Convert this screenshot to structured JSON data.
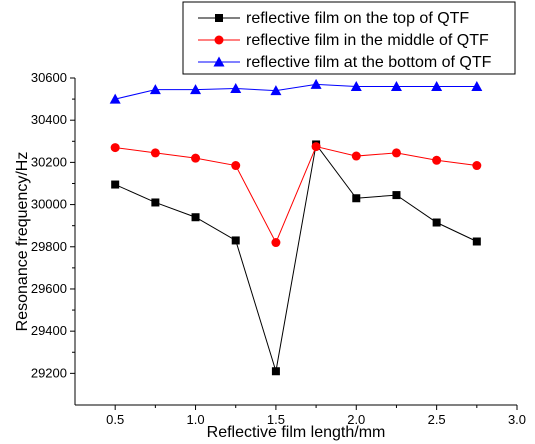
{
  "chart_data": {
    "type": "line",
    "xlabel": "Reflective film length/mm",
    "ylabel": "Resonance frequency/Hz",
    "xlim": [
      0.25,
      3.0
    ],
    "ylim": [
      29050,
      30600
    ],
    "x_ticks": [
      0.5,
      1.0,
      1.5,
      2.0,
      2.5,
      3.0
    ],
    "x_tick_labels": [
      "0.5",
      "1.0",
      "1.5",
      "2.0",
      "2.5",
      "3.0"
    ],
    "y_ticks": [
      29200,
      29400,
      29600,
      29800,
      30000,
      30200,
      30400,
      30600
    ],
    "y_tick_labels": [
      "29200",
      "29400",
      "29600",
      "29800",
      "30000",
      "30200",
      "30400",
      "30600"
    ],
    "grid": false,
    "legend_position": "top-right",
    "x": [
      0.5,
      0.75,
      1.0,
      1.25,
      1.5,
      1.75,
      2.0,
      2.25,
      2.5,
      2.75
    ],
    "series": [
      {
        "name": "reflective film on the top of QTF",
        "color": "#000000",
        "marker": "square",
        "values": [
          30095,
          30010,
          29940,
          29830,
          29210,
          30285,
          30030,
          30045,
          29915,
          29825
        ]
      },
      {
        "name": "reflective film in the middle of QTF",
        "color": "#ff0000",
        "marker": "circle",
        "values": [
          30270,
          30245,
          30220,
          30185,
          29820,
          30275,
          30230,
          30245,
          30210,
          30185
        ]
      },
      {
        "name": "reflective film at the bottom of QTF",
        "color": "#0000ff",
        "marker": "triangle",
        "values": [
          30500,
          30545,
          30545,
          30550,
          30540,
          30570,
          30560,
          30560,
          30560,
          30560
        ]
      }
    ]
  }
}
